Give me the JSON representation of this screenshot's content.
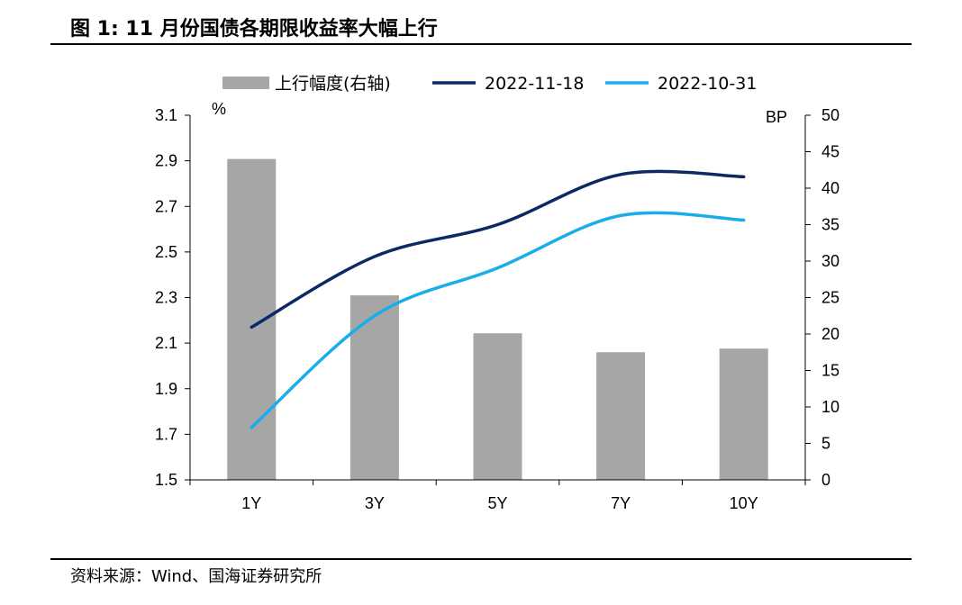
{
  "figure": {
    "title": "图 1:  11 月份国债各期限收益率大幅上行",
    "source": "资料来源：Wind、国海证券研究所"
  },
  "chart_data": {
    "type": "bar",
    "categories": [
      "1Y",
      "3Y",
      "5Y",
      "7Y",
      "10Y"
    ],
    "left_axis": {
      "unit": "%",
      "min": 1.5,
      "max": 3.1,
      "ticks": [
        "1.5",
        "1.7",
        "1.9",
        "2.1",
        "2.3",
        "2.5",
        "2.7",
        "2.9",
        "3.1"
      ]
    },
    "right_axis": {
      "unit": "BP",
      "min": 0,
      "max": 50,
      "ticks": [
        "0",
        "5",
        "10",
        "15",
        "20",
        "25",
        "30",
        "35",
        "40",
        "45",
        "50"
      ]
    },
    "series": [
      {
        "name": "上行幅度(右轴)",
        "type": "bar",
        "axis": "right",
        "color": "#a6a6a6",
        "values": [
          44,
          25.3,
          20.1,
          17.5,
          18
        ]
      },
      {
        "name": "2022-11-18",
        "type": "line",
        "axis": "left",
        "color": "#0b2a63",
        "values": [
          2.17,
          2.48,
          2.62,
          2.84,
          2.83
        ]
      },
      {
        "name": "2022-10-31",
        "type": "line",
        "axis": "left",
        "color": "#1aaee8",
        "values": [
          1.73,
          2.22,
          2.43,
          2.66,
          2.64
        ]
      }
    ],
    "legend": "top",
    "grid": false
  }
}
